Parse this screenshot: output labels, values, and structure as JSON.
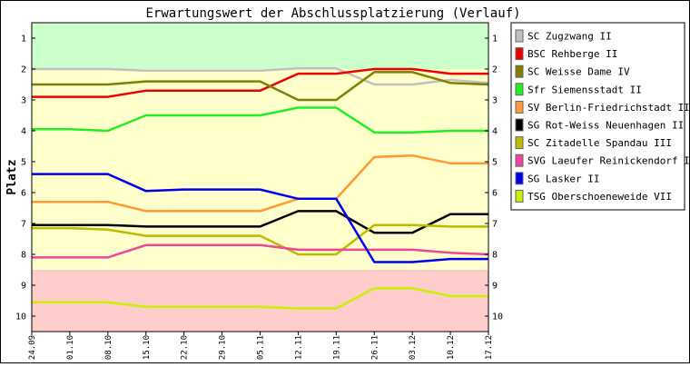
{
  "chart_data": {
    "type": "line",
    "title": "Erwartungswert der Abschlussplatzierung (Verlauf)",
    "ylabel": "Platz",
    "xlabel": "",
    "ylim": [
      10.5,
      0.5
    ],
    "y_reversed": true,
    "y_ticks": [
      1,
      2,
      3,
      4,
      5,
      6,
      7,
      8,
      9,
      10
    ],
    "categories": [
      "24.09",
      "01.10",
      "08.10",
      "15.10",
      "22.10",
      "29.10",
      "05.11",
      "12.11",
      "19.11",
      "26.11",
      "03.12",
      "10.12",
      "17.12"
    ],
    "zones": [
      {
        "from": 0.5,
        "to": 2.0,
        "color": "#ccffcc"
      },
      {
        "from": 2.0,
        "to": 8.5,
        "color": "#ffffcc"
      },
      {
        "from": 8.5,
        "to": 10.5,
        "color": "#ffcccc"
      }
    ],
    "legend_position": "right",
    "grid": false,
    "series": [
      {
        "name": "SC Zugzwang II",
        "color": "#c0c0c0",
        "values": [
          2.0,
          2.0,
          2.0,
          2.05,
          2.05,
          2.05,
          2.05,
          1.98,
          1.98,
          2.5,
          2.5,
          2.35,
          2.45
        ]
      },
      {
        "name": "BSC Rehberge II",
        "color": "#ee0000",
        "values": [
          2.9,
          2.9,
          2.9,
          2.7,
          2.7,
          2.7,
          2.7,
          2.15,
          2.15,
          2.0,
          2.0,
          2.15,
          2.15
        ]
      },
      {
        "name": "SC Weisse Dame IV",
        "color": "#808000",
        "values": [
          2.5,
          2.5,
          2.5,
          2.4,
          2.4,
          2.4,
          2.4,
          3.0,
          3.0,
          2.1,
          2.1,
          2.45,
          2.5
        ]
      },
      {
        "name": "Sfr Siemensstadt II",
        "color": "#22ee22",
        "values": [
          3.95,
          3.95,
          4.0,
          3.5,
          3.5,
          3.5,
          3.5,
          3.25,
          3.25,
          4.05,
          4.05,
          4.0,
          4.0
        ]
      },
      {
        "name": "SV Berlin-Friedrichstadt II",
        "color": "#ff9933",
        "values": [
          6.3,
          6.3,
          6.3,
          6.6,
          6.6,
          6.6,
          6.6,
          6.2,
          6.2,
          4.85,
          4.8,
          5.05,
          5.05
        ]
      },
      {
        "name": "SG Rot-Weiss Neuenhagen II",
        "color": "#000000",
        "values": [
          7.05,
          7.05,
          7.05,
          7.1,
          7.1,
          7.1,
          7.1,
          6.6,
          6.6,
          7.3,
          7.3,
          6.7,
          6.7
        ]
      },
      {
        "name": "SC Zitadelle Spandau III",
        "color": "#bbbb00",
        "values": [
          7.15,
          7.15,
          7.2,
          7.4,
          7.4,
          7.4,
          7.4,
          8.0,
          8.0,
          7.05,
          7.05,
          7.1,
          7.1
        ]
      },
      {
        "name": "SVG Laeufer Reinickendorf II",
        "color": "#ee4499",
        "values": [
          8.1,
          8.1,
          8.1,
          7.7,
          7.7,
          7.7,
          7.7,
          7.85,
          7.85,
          7.85,
          7.85,
          7.95,
          8.0
        ]
      },
      {
        "name": "SG Lasker II",
        "color": "#0000ee",
        "values": [
          5.4,
          5.4,
          5.4,
          5.95,
          5.9,
          5.9,
          5.9,
          6.2,
          6.2,
          8.25,
          8.25,
          8.15,
          8.15
        ]
      },
      {
        "name": "TSG Oberschoeneweide VII",
        "color": "#ccee00",
        "values": [
          9.55,
          9.55,
          9.55,
          9.7,
          9.7,
          9.7,
          9.7,
          9.75,
          9.75,
          9.1,
          9.1,
          9.35,
          9.35
        ]
      }
    ]
  }
}
